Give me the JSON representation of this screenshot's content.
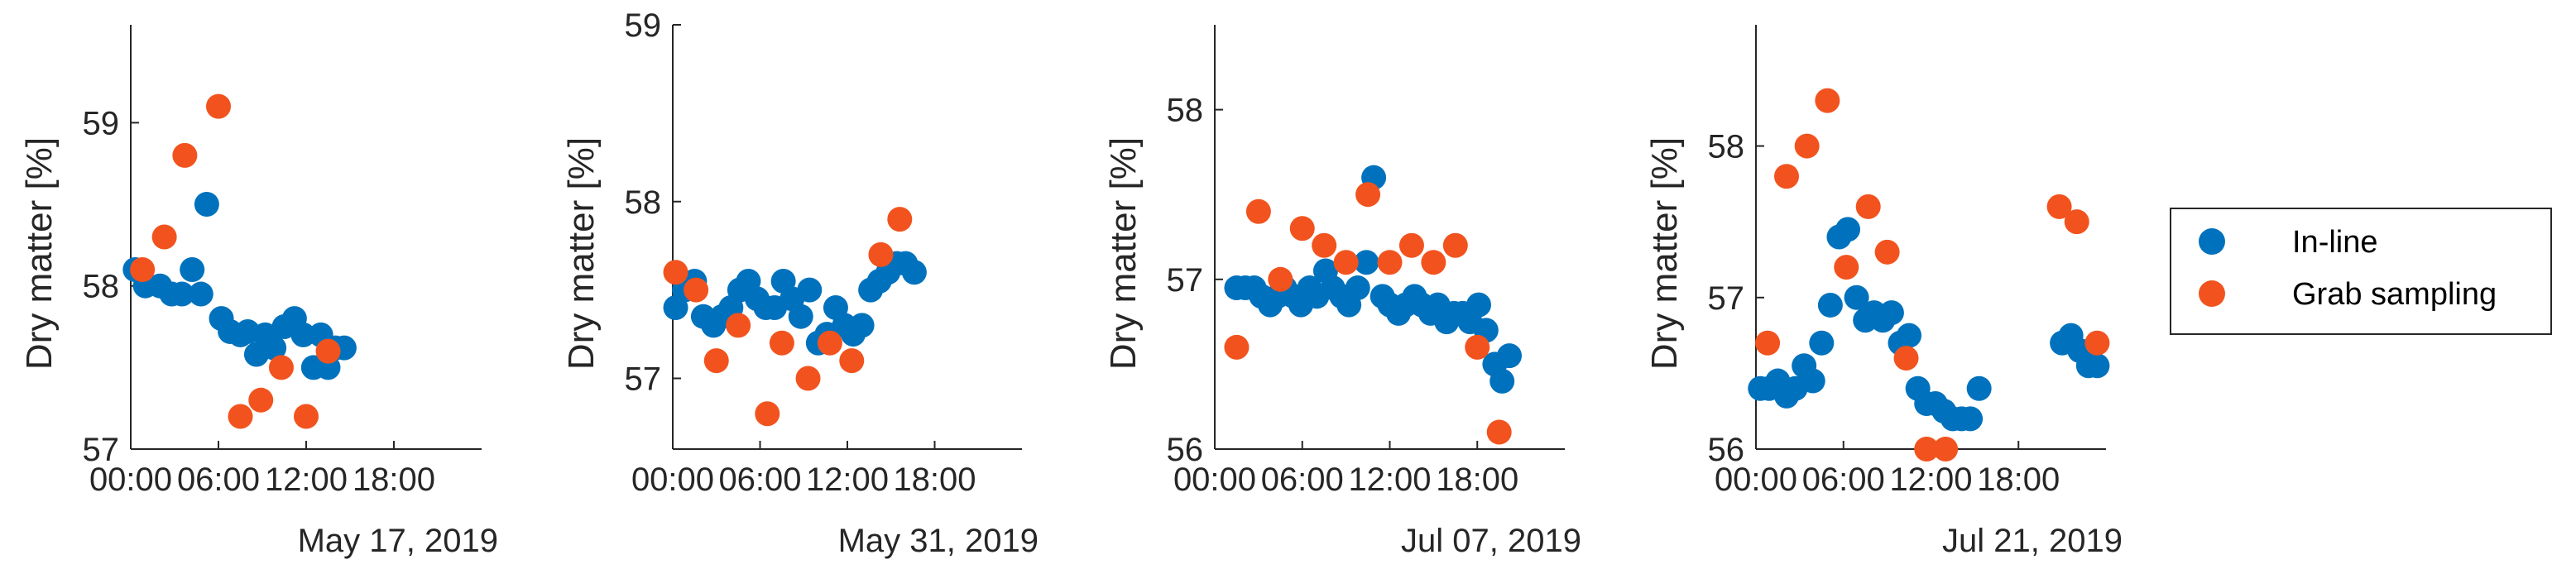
{
  "colors": {
    "inline": "#0072BD",
    "grab": "#F2531E",
    "axis": "#262626"
  },
  "legend": {
    "placement": "right",
    "entries": [
      "In-line",
      "Grab sampling"
    ]
  },
  "chart_data": [
    {
      "type": "scatter",
      "date_label": "May 17, 2019",
      "ylabel": "Dry matter [%]",
      "xlim": [
        0,
        24
      ],
      "ylim": [
        57,
        59.6
      ],
      "yticks": [
        57,
        58,
        59
      ],
      "ytick_labels": [
        "57",
        "58",
        "59"
      ],
      "xticks": [
        0,
        6,
        12,
        18
      ],
      "xtick_labels": [
        "00:00",
        "06:00",
        "12:00",
        "18:00"
      ],
      "series": [
        {
          "name": "In-line",
          "x": [
            0.3,
            1.0,
            2.0,
            2.8,
            3.5,
            4.2,
            4.8,
            5.2,
            6.2,
            6.8,
            7.5,
            8.0,
            8.6,
            9.2,
            9.8,
            10.5,
            11.2,
            11.8,
            12.5,
            13.0,
            13.5,
            14.0,
            14.6
          ],
          "y": [
            58.1,
            58.0,
            58.0,
            57.95,
            57.95,
            58.1,
            57.95,
            58.5,
            57.8,
            57.72,
            57.7,
            57.72,
            57.58,
            57.7,
            57.62,
            57.75,
            57.8,
            57.7,
            57.5,
            57.7,
            57.5,
            57.62,
            57.62
          ]
        },
        {
          "name": "Grab sampling",
          "x": [
            0.8,
            2.3,
            3.7,
            6.0,
            7.5,
            8.9,
            10.3,
            12.0,
            13.5
          ],
          "y": [
            58.1,
            58.3,
            58.8,
            59.1,
            57.2,
            57.3,
            57.5,
            57.2,
            57.6
          ]
        }
      ]
    },
    {
      "type": "scatter",
      "date_label": "May 31, 2019",
      "ylabel": "Dry matter [%]",
      "xlim": [
        0,
        24
      ],
      "ylim": [
        56.6,
        59.0
      ],
      "yticks": [
        57,
        58,
        59
      ],
      "ytick_labels": [
        "57",
        "58",
        "59"
      ],
      "xticks": [
        0,
        6,
        12,
        18
      ],
      "xtick_labels": [
        "00:00",
        "06:00",
        "12:00",
        "18:00"
      ],
      "series": [
        {
          "name": "In-line",
          "x": [
            0.2,
            0.8,
            1.5,
            2.1,
            2.8,
            3.4,
            4.0,
            4.6,
            5.2,
            5.8,
            6.4,
            7.0,
            7.6,
            8.2,
            8.8,
            9.4,
            10.0,
            10.6,
            11.2,
            11.8,
            12.4,
            13.0,
            13.6,
            14.2,
            14.8,
            15.4,
            16.0,
            16.6
          ],
          "y": [
            57.4,
            57.5,
            57.55,
            57.35,
            57.3,
            57.35,
            57.4,
            57.5,
            57.55,
            57.45,
            57.4,
            57.4,
            57.55,
            57.45,
            57.35,
            57.5,
            57.2,
            57.25,
            57.4,
            57.3,
            57.25,
            57.3,
            57.5,
            57.55,
            57.6,
            57.65,
            57.65,
            57.6
          ]
        },
        {
          "name": "Grab sampling",
          "x": [
            0.2,
            1.6,
            3.0,
            4.5,
            6.5,
            7.5,
            9.3,
            10.8,
            12.3,
            14.3,
            15.6
          ],
          "y": [
            57.6,
            57.5,
            57.1,
            57.3,
            56.8,
            57.2,
            57.0,
            57.2,
            57.1,
            57.7,
            57.9
          ]
        }
      ]
    },
    {
      "type": "scatter",
      "date_label": "Jul 07, 2019",
      "ylabel": "Dry matter [%]",
      "xlim": [
        0,
        24
      ],
      "ylim": [
        56,
        58.5
      ],
      "yticks": [
        56,
        57,
        58
      ],
      "ytick_labels": [
        "56",
        "57",
        "58"
      ],
      "xticks": [
        0,
        6,
        12,
        18
      ],
      "xtick_labels": [
        "00:00",
        "06:00",
        "12:00",
        "18:00"
      ],
      "series": [
        {
          "name": "In-line",
          "x": [
            1.5,
            2.1,
            2.7,
            3.2,
            3.8,
            4.3,
            4.8,
            5.4,
            5.9,
            6.5,
            7.0,
            7.6,
            8.1,
            8.7,
            9.2,
            9.8,
            10.4,
            10.9,
            11.5,
            12.0,
            12.6,
            13.1,
            13.7,
            14.2,
            14.8,
            15.3,
            15.9,
            16.4,
            17.0,
            17.5,
            18.1,
            18.6,
            19.2,
            19.7,
            20.2
          ],
          "y": [
            56.95,
            56.95,
            56.95,
            56.9,
            56.85,
            56.9,
            56.95,
            56.9,
            56.85,
            56.95,
            56.9,
            57.05,
            56.95,
            56.9,
            56.85,
            56.95,
            57.1,
            57.6,
            56.9,
            56.85,
            56.8,
            56.85,
            56.9,
            56.85,
            56.8,
            56.85,
            56.75,
            56.8,
            56.8,
            56.75,
            56.85,
            56.7,
            56.5,
            56.4,
            56.55
          ]
        },
        {
          "name": "Grab sampling",
          "x": [
            1.5,
            3.0,
            4.5,
            6.0,
            7.5,
            9.0,
            10.5,
            12.0,
            13.5,
            15.0,
            16.5,
            18.0,
            19.5
          ],
          "y": [
            56.6,
            57.4,
            57.0,
            57.3,
            57.2,
            57.1,
            57.5,
            57.1,
            57.2,
            57.1,
            57.2,
            56.6,
            56.1
          ]
        }
      ]
    },
    {
      "type": "scatter",
      "date_label": "Jul 21, 2019",
      "ylabel": "Dry matter [%]",
      "xlim": [
        0,
        24
      ],
      "ylim": [
        56,
        58.8
      ],
      "yticks": [
        56,
        57,
        58
      ],
      "ytick_labels": [
        "56",
        "57",
        "58"
      ],
      "xticks": [
        0,
        6,
        12,
        18
      ],
      "xtick_labels": [
        "00:00",
        "06:00",
        "12:00",
        "18:00"
      ],
      "series": [
        {
          "name": "In-line",
          "x": [
            0.3,
            0.9,
            1.5,
            2.1,
            2.7,
            3.3,
            3.9,
            4.5,
            5.1,
            5.7,
            6.3,
            6.9,
            7.5,
            8.1,
            8.7,
            9.3,
            9.9,
            10.5,
            11.1,
            11.7,
            12.3,
            12.9,
            13.5,
            14.1,
            14.7,
            15.3,
            21.0,
            21.6,
            22.2,
            22.8,
            23.4
          ],
          "y": [
            56.4,
            56.4,
            56.45,
            56.35,
            56.4,
            56.55,
            56.45,
            56.7,
            56.95,
            57.4,
            57.45,
            57.0,
            56.85,
            56.9,
            56.85,
            56.9,
            56.7,
            56.75,
            56.4,
            56.3,
            56.3,
            56.25,
            56.2,
            56.2,
            56.2,
            56.4,
            56.7,
            56.75,
            56.65,
            56.55,
            56.55
          ]
        },
        {
          "name": "Grab sampling",
          "x": [
            0.8,
            2.1,
            3.5,
            4.9,
            6.2,
            7.7,
            9.0,
            10.3,
            11.7,
            13.0,
            20.8,
            22.0,
            23.4
          ],
          "y": [
            56.7,
            57.8,
            58.0,
            58.3,
            57.2,
            57.6,
            57.3,
            56.6,
            56.0,
            56.0,
            57.6,
            57.5,
            56.7
          ]
        }
      ]
    }
  ]
}
